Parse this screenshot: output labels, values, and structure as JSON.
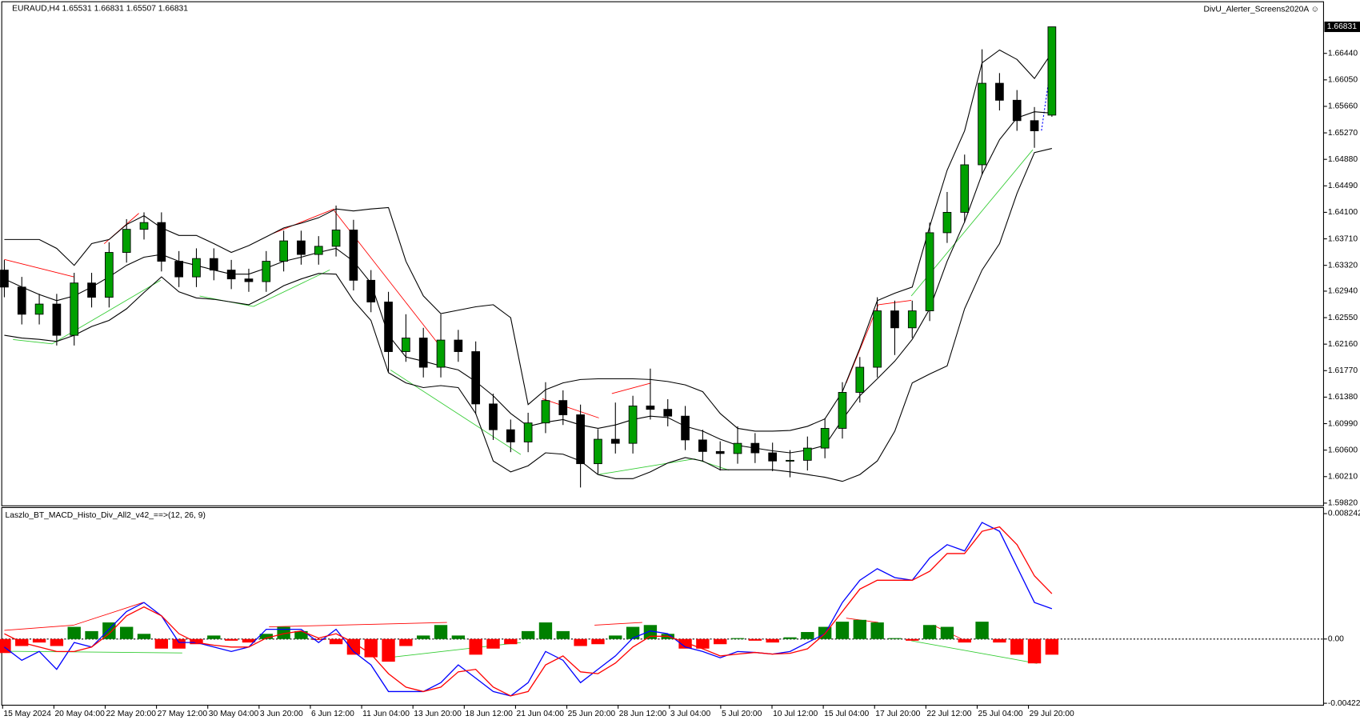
{
  "chart_data": [
    {
      "type": "candlestick",
      "title": "EURAUD,H4  1.65531 1.66831 1.65507 1.66831",
      "annotation": "DivU_Alerter_Screens2020A ☺",
      "ohlc": [
        [
          1.6325,
          1.634,
          1.6285,
          1.63
        ],
        [
          1.63,
          1.6315,
          1.6245,
          1.626
        ],
        [
          1.626,
          1.629,
          1.6245,
          1.6275
        ],
        [
          1.6275,
          1.629,
          1.6214,
          1.6229
        ],
        [
          1.6229,
          1.6321,
          1.6214,
          1.6306
        ],
        [
          1.6306,
          1.6321,
          1.627,
          1.6285
        ],
        [
          1.6285,
          1.6366,
          1.627,
          1.6351
        ],
        [
          1.6351,
          1.64,
          1.6336,
          1.6385
        ],
        [
          1.6385,
          1.641,
          1.637,
          1.6395
        ],
        [
          1.6395,
          1.641,
          1.6323,
          1.6338
        ],
        [
          1.6338,
          1.6353,
          1.63,
          1.6315
        ],
        [
          1.6315,
          1.6357,
          1.63,
          1.6342
        ],
        [
          1.6342,
          1.6357,
          1.631,
          1.6325
        ],
        [
          1.6325,
          1.634,
          1.6297,
          1.6312
        ],
        [
          1.6312,
          1.6327,
          1.6293,
          1.6308
        ],
        [
          1.6308,
          1.6353,
          1.6293,
          1.6338
        ],
        [
          1.6338,
          1.6383,
          1.6323,
          1.6368
        ],
        [
          1.6368,
          1.6383,
          1.6333,
          1.6348
        ],
        [
          1.6348,
          1.6375,
          1.6333,
          1.636
        ],
        [
          1.636,
          1.642,
          1.6345,
          1.6384
        ],
        [
          1.6384,
          1.6399,
          1.6295,
          1.631
        ],
        [
          1.631,
          1.6325,
          1.6263,
          1.6278
        ],
        [
          1.6278,
          1.6293,
          1.6175,
          1.6205
        ],
        [
          1.6205,
          1.626,
          1.619,
          1.6225
        ],
        [
          1.6225,
          1.624,
          1.6167,
          1.6182
        ],
        [
          1.6182,
          1.626,
          1.6167,
          1.6222
        ],
        [
          1.6222,
          1.6237,
          1.619,
          1.6205
        ],
        [
          1.6205,
          1.622,
          1.6113,
          1.6128
        ],
        [
          1.6128,
          1.6143,
          1.6075,
          1.609
        ],
        [
          1.609,
          1.6105,
          1.6057,
          1.6072
        ],
        [
          1.6072,
          1.6115,
          1.6057,
          1.61
        ],
        [
          1.61,
          1.616,
          1.6085,
          1.6133
        ],
        [
          1.6133,
          1.6148,
          1.6097,
          1.6112
        ],
        [
          1.6112,
          1.6127,
          1.6005,
          1.604
        ],
        [
          1.604,
          1.6091,
          1.6025,
          1.6076
        ],
        [
          1.6076,
          1.613,
          1.6055,
          1.607
        ],
        [
          1.607,
          1.614,
          1.6055,
          1.6125
        ],
        [
          1.6125,
          1.618,
          1.6105,
          1.612
        ],
        [
          1.612,
          1.6135,
          1.6095,
          1.611
        ],
        [
          1.611,
          1.6125,
          1.606,
          1.6075
        ],
        [
          1.6075,
          1.609,
          1.6043,
          1.6058
        ],
        [
          1.6058,
          1.6073,
          1.603,
          1.6055
        ],
        [
          1.6055,
          1.6095,
          1.604,
          1.607
        ],
        [
          1.607,
          1.6085,
          1.6041,
          1.6056
        ],
        [
          1.6056,
          1.6071,
          1.6029,
          1.6044
        ],
        [
          1.6044,
          1.606,
          1.602,
          1.6045
        ],
        [
          1.6045,
          1.608,
          1.603,
          1.6063
        ],
        [
          1.6063,
          1.6107,
          1.6048,
          1.6092
        ],
        [
          1.6092,
          1.616,
          1.6077,
          1.6145
        ],
        [
          1.6145,
          1.6197,
          1.613,
          1.6182
        ],
        [
          1.6182,
          1.6285,
          1.6167,
          1.6265
        ],
        [
          1.6265,
          1.628,
          1.62,
          1.624
        ],
        [
          1.624,
          1.628,
          1.6225,
          1.6265
        ],
        [
          1.6265,
          1.6395,
          1.625,
          1.638
        ],
        [
          1.638,
          1.644,
          1.6365,
          1.641
        ],
        [
          1.641,
          1.6495,
          1.6395,
          1.648
        ],
        [
          1.648,
          1.665,
          1.6465,
          1.66
        ],
        [
          1.66,
          1.6615,
          1.656,
          1.6575
        ],
        [
          1.6575,
          1.659,
          1.653,
          1.6545
        ],
        [
          1.6545,
          1.6565,
          1.6505,
          1.653
        ],
        [
          1.65531,
          1.66831,
          1.65507,
          1.66831
        ]
      ],
      "up_color": "#00a000",
      "down_color": "#000000",
      "bands": {
        "color": "#000000",
        "upper": [
          1.637,
          1.637,
          1.637,
          1.6357,
          1.6332,
          1.6364,
          1.637,
          1.6392,
          1.6405,
          1.6387,
          1.6376,
          1.6376,
          1.6364,
          1.6351,
          1.6361,
          1.6374,
          1.6387,
          1.6394,
          1.6402,
          1.6415,
          1.6412,
          1.6415,
          1.6417,
          1.6338,
          1.6287,
          1.6261,
          1.6266,
          1.6271,
          1.6274,
          1.6255,
          1.6127,
          1.6149,
          1.6159,
          1.6164,
          1.6165,
          1.6165,
          1.6165,
          1.6164,
          1.6161,
          1.6156,
          1.6146,
          1.6114,
          1.6092,
          1.6088,
          1.6088,
          1.6089,
          1.6095,
          1.6106,
          1.6146,
          1.621,
          1.628,
          1.6291,
          1.63,
          1.6389,
          1.6472,
          1.653,
          1.663,
          1.6649,
          1.6635,
          1.6607,
          1.6645
        ],
        "middle": [
          1.6312,
          1.63,
          1.6289,
          1.628,
          1.6287,
          1.63,
          1.6315,
          1.6332,
          1.6344,
          1.6348,
          1.6338,
          1.6332,
          1.6325,
          1.6319,
          1.6319,
          1.6328,
          1.6338,
          1.6344,
          1.6351,
          1.6357,
          1.6338,
          1.6306,
          1.6229,
          1.6197,
          1.6191,
          1.6184,
          1.6178,
          1.6161,
          1.614,
          1.6114,
          1.6095,
          1.6101,
          1.6105,
          1.6097,
          1.6092,
          1.6097,
          1.6105,
          1.611,
          1.6108,
          1.6095,
          1.6088,
          1.6076,
          1.6067,
          1.6063,
          1.6059,
          1.6056,
          1.606,
          1.6067,
          1.6105,
          1.614,
          1.6165,
          1.6191,
          1.6223,
          1.6268,
          1.6338,
          1.6396,
          1.6466,
          1.6517,
          1.6549,
          1.6558,
          1.6556
        ],
        "lower": [
          1.6229,
          1.6225,
          1.6223,
          1.622,
          1.6229,
          1.6242,
          1.6251,
          1.6268,
          1.6292,
          1.6315,
          1.6293,
          1.6284,
          1.6282,
          1.6278,
          1.6274,
          1.6287,
          1.6302,
          1.6312,
          1.632,
          1.6319,
          1.628,
          1.6251,
          1.6174,
          1.6159,
          1.6152,
          1.6155,
          1.6152,
          1.6114,
          1.6044,
          1.6028,
          1.6037,
          1.6056,
          1.6054,
          1.6044,
          1.6024,
          1.6018,
          1.6018,
          1.6028,
          1.6041,
          1.6049,
          1.6044,
          1.6031,
          1.6031,
          1.6031,
          1.6031,
          1.6028,
          1.6024,
          1.602,
          1.6014,
          1.6024,
          1.6044,
          1.6088,
          1.6159,
          1.6172,
          1.6184,
          1.6268,
          1.6325,
          1.6364,
          1.6438,
          1.6498,
          1.6504
        ]
      },
      "ylim": [
        1.5978,
        1.672
      ],
      "yticks": [
        {
          "value": 1.6644,
          "label": "1.66440"
        },
        {
          "value": 1.6605,
          "label": "1.66050"
        },
        {
          "value": 1.6566,
          "label": "1.65660"
        },
        {
          "value": 1.6527,
          "label": "1.65270"
        },
        {
          "value": 1.6488,
          "label": "1.64880"
        },
        {
          "value": 1.6449,
          "label": "1.64490"
        },
        {
          "value": 1.641,
          "label": "1.64100"
        },
        {
          "value": 1.6371,
          "label": "1.63710"
        },
        {
          "value": 1.6332,
          "label": "1.63320"
        },
        {
          "value": 1.6294,
          "label": "1.62940"
        },
        {
          "value": 1.6255,
          "label": "1.62550"
        },
        {
          "value": 1.6216,
          "label": "1.62160"
        },
        {
          "value": 1.6177,
          "label": "1.61770"
        },
        {
          "value": 1.6138,
          "label": "1.61380"
        },
        {
          "value": 1.6099,
          "label": "1.60990"
        },
        {
          "value": 1.606,
          "label": "1.60600"
        },
        {
          "value": 1.6021,
          "label": "1.60210"
        },
        {
          "value": 1.5982,
          "label": "1.59820"
        }
      ],
      "grid": false
    },
    {
      "type": "macd",
      "title": "Laszlo_BT_MACD_Histo_Div_All2_v42_==>(12, 26, 9)",
      "series": [
        {
          "color": "#0000ff",
          "values": [
            -0.00053,
            -0.0014,
            -0.00082,
            -0.00199,
            -0.00023,
            -0.00053,
            0.00064,
            0.00181,
            0.0024,
            0.00152,
            -0.00023,
            -0.00023,
            -0.00053,
            -0.00082,
            -0.00053,
            0.00064,
            0.00064,
            0.00064,
            -0.00023,
            0.00064,
            -0.00082,
            -0.0017,
            -0.00345,
            -0.00345,
            -0.00345,
            -0.00287,
            -0.0017,
            -0.00257,
            -0.00345,
            -0.00374,
            -0.00287,
            -0.00082,
            -0.0014,
            -0.00287,
            -0.00199,
            -0.00111,
            6e-05,
            0.00053,
            0.00035,
            -0.00053,
            -0.00082,
            -0.00123,
            -0.00082,
            -0.00088,
            -0.00099,
            -0.00082,
            -0.00023,
            0.00035,
            0.0024,
            0.00386,
            0.00462,
            0.00404,
            0.00386,
            0.00532,
            0.0062,
            0.00579,
            0.00766,
            0.00708,
            0.00474,
            0.0024,
            0.00199
          ]
        },
        {
          "color": "#ff0000",
          "values": [
            0.00035,
            -0.00023,
            -0.00053,
            -0.00082,
            -0.00082,
            -0.00053,
            0.00035,
            0.00152,
            0.00211,
            0.00152,
            0.00035,
            -0.00023,
            -0.00041,
            -0.00053,
            -0.00053,
            6e-05,
            0.00035,
            0.00053,
            6e-05,
            0.00035,
            -0.00023,
            -0.00099,
            -0.00228,
            -0.00316,
            -0.00345,
            -0.00316,
            -0.00216,
            -0.00199,
            -0.00316,
            -0.00374,
            -0.00345,
            -0.0017,
            -0.00111,
            -0.00216,
            -0.00228,
            -0.00158,
            -0.00053,
            0.00018,
            0.00018,
            -0.00023,
            -0.00064,
            -0.00111,
            -0.00099,
            -0.00088,
            -0.00099,
            -0.00094,
            -0.00064,
            0.00035,
            0.00181,
            0.00328,
            0.00386,
            0.00386,
            0.00386,
            0.00445,
            0.00562,
            0.00562,
            0.00708,
            0.00737,
            0.0062,
            0.00415,
            0.00298
          ]
        }
      ],
      "histogram": [
        -0.00092,
        -0.00046,
        -0.00023,
        -0.00046,
        0.0008,
        0.00052,
        0.00109,
        0.0008,
        0.00034,
        -0.00063,
        -0.00063,
        -0.00034,
        0.00023,
        -0.00011,
        -0.00023,
        0.00034,
        0.0008,
        0.00052,
        -6e-05,
        -0.00034,
        -0.00103,
        -0.0012,
        -0.00149,
        -0.00046,
        0.00023,
        0.00092,
        0.00023,
        -0.00103,
        -0.00063,
        -0.00034,
        0.00052,
        0.00109,
        0.00052,
        -0.00046,
        -0.00034,
        0.00023,
        0.0008,
        0.00092,
        0.00034,
        -0.00063,
        -0.00063,
        -0.00034,
        6e-05,
        -0.00011,
        -0.00023,
        0.00011,
        0.00046,
        0.0008,
        0.00114,
        0.00126,
        0.00109,
        6e-05,
        -0.00011,
        0.00092,
        0.0008,
        -0.00023,
        0.00114,
        -0.00023,
        -0.00103,
        -0.0016,
        -0.00103
      ],
      "positive_color": "#008000",
      "negative_color": "#ff0000",
      "ylim": [
        -0.00435,
        0.00864
      ],
      "yticks": [
        0.008242,
        {
          "value": 0,
          "label": "0.00"
        },
        -0.004224
      ],
      "zero_line": true,
      "time_labels": [
        "15 May 2024",
        "20 May 04:00",
        "22 May 20:00",
        "27 May 12:00",
        "30 May 04:00",
        "3 Jun 20:00",
        "6 Jun 12:00",
        "11 Jun 04:00",
        "13 Jun 20:00",
        "18 Jun 12:00",
        "21 Jun 04:00",
        "25 Jun 20:00",
        "28 Jun 12:00",
        "3 Jul 04:00",
        "5 Jul 20:00",
        "10 Jul 12:00",
        "15 Jul 04:00",
        "17 Jul 20:00",
        "22 Jul 12:00",
        "25 Jul 04:00",
        "29 Jul 20:00"
      ]
    }
  ]
}
